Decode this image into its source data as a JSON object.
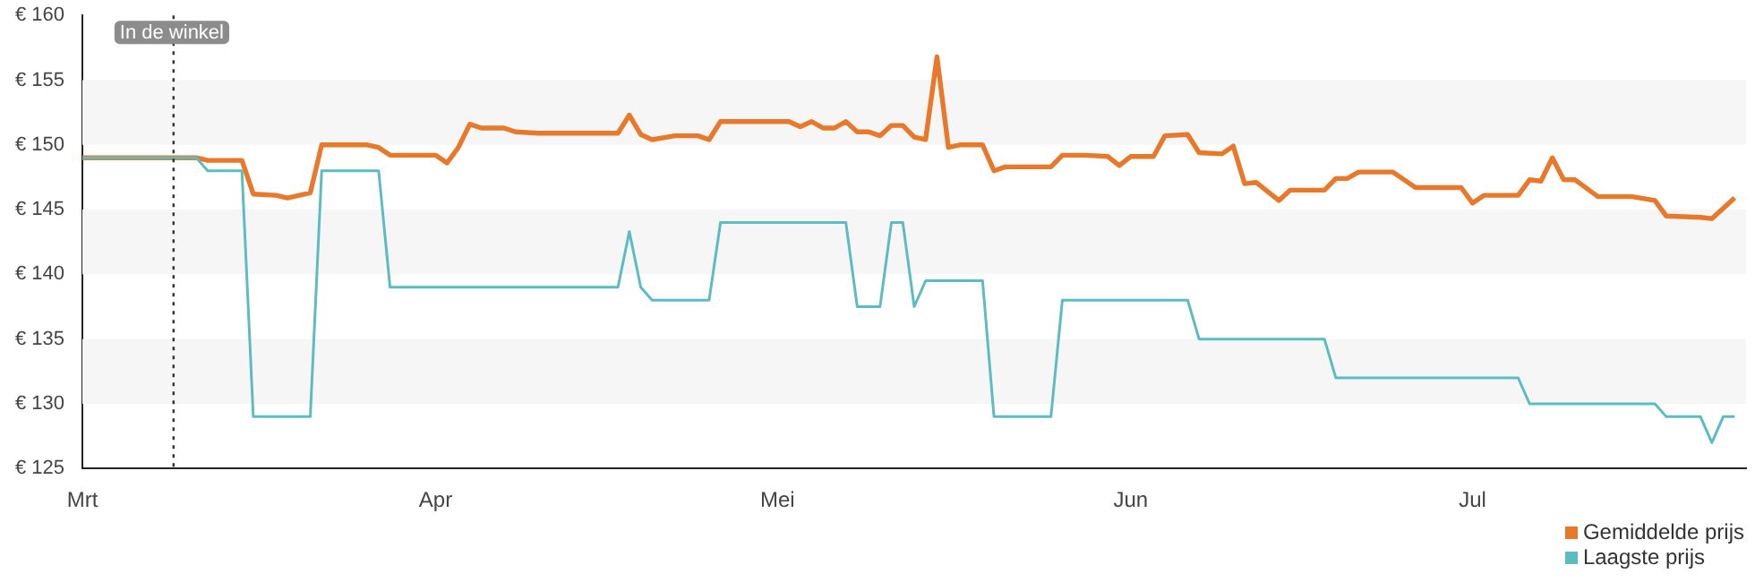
{
  "chart_data": {
    "type": "line",
    "xlim": [
      "--03-01",
      "--07-25"
    ],
    "xticks": [
      {
        "value": "--03-01",
        "label": "Mrt"
      },
      {
        "value": "--04-01",
        "label": "Apr"
      },
      {
        "value": "--05-01",
        "label": "Mei"
      },
      {
        "value": "--06-01",
        "label": "Jun"
      },
      {
        "value": "--07-01",
        "label": "Jul"
      }
    ],
    "ylim": [
      125,
      160
    ],
    "yticks": [
      {
        "value": 125,
        "label": "€ 125"
      },
      {
        "value": 130,
        "label": "€ 130"
      },
      {
        "value": 135,
        "label": "€ 135"
      },
      {
        "value": 140,
        "label": "€ 140"
      },
      {
        "value": 145,
        "label": "€ 145"
      },
      {
        "value": 150,
        "label": "€ 150"
      },
      {
        "value": 155,
        "label": "€ 155"
      },
      {
        "value": 160,
        "label": "€ 160"
      }
    ],
    "legend": "bottom right",
    "marker": "none",
    "line_style": "solid",
    "ref_lines": [
      {
        "axis": "x",
        "value": "--03-09",
        "label": "In de winkel",
        "line_style": "dotted",
        "color": "#333333"
      }
    ],
    "series": [
      {
        "name": "Gemiddelde prijs",
        "color": "#e8782a",
        "x": [
          "--03-01",
          "--03-11",
          "--03-12",
          "--03-15",
          "--03-16",
          "--03-18",
          "--03-19",
          "--03-21",
          "--03-22",
          "--03-26",
          "--03-27",
          "--03-28",
          "--04-01",
          "--04-02",
          "--04-03",
          "--04-04",
          "--04-05",
          "--04-07",
          "--04-08",
          "--04-10",
          "--04-17",
          "--04-18",
          "--04-19",
          "--04-20",
          "--04-22",
          "--04-24",
          "--04-25",
          "--04-26",
          "--05-02",
          "--05-03",
          "--05-04",
          "--05-05",
          "--05-06",
          "--05-07",
          "--05-08",
          "--05-09",
          "--05-10",
          "--05-11",
          "--05-12",
          "--05-13",
          "--05-14",
          "--05-15",
          "--05-16",
          "--05-17",
          "--05-19",
          "--05-20",
          "--05-21",
          "--05-25",
          "--05-26",
          "--05-28",
          "--05-30",
          "--05-31",
          "--06-01",
          "--06-03",
          "--06-04",
          "--06-06",
          "--06-07",
          "--06-09",
          "--06-10",
          "--06-11",
          "--06-12",
          "--06-14",
          "--06-15",
          "--06-18",
          "--06-19",
          "--06-20",
          "--06-21",
          "--06-24",
          "--06-26",
          "--06-30",
          "--07-01",
          "--07-02",
          "--07-05",
          "--07-06",
          "--07-07",
          "--07-08",
          "--07-09",
          "--07-10",
          "--07-12",
          "--07-15",
          "--07-17",
          "--07-18",
          "--07-21",
          "--07-22",
          "--07-24"
        ],
        "values": [
          149,
          149,
          148.8,
          148.8,
          146.2,
          146.1,
          145.9,
          146.3,
          150,
          150,
          149.8,
          149.2,
          149.2,
          148.6,
          149.8,
          151.6,
          151.3,
          151.3,
          151,
          150.9,
          150.9,
          152.3,
          150.8,
          150.4,
          150.7,
          150.7,
          150.4,
          151.8,
          151.8,
          151.4,
          151.8,
          151.3,
          151.3,
          151.8,
          151,
          151,
          150.7,
          151.5,
          151.5,
          150.6,
          150.4,
          156.8,
          149.8,
          150,
          150,
          148,
          148.3,
          148.3,
          149.2,
          149.2,
          149.1,
          148.4,
          149.1,
          149.1,
          150.7,
          150.8,
          149.4,
          149.3,
          149.9,
          147,
          147.1,
          145.7,
          146.5,
          146.5,
          147.4,
          147.4,
          147.9,
          147.9,
          146.7,
          146.7,
          145.5,
          146.1,
          146.1,
          147.3,
          147.2,
          149,
          147.3,
          147.3,
          146,
          146,
          145.7,
          144.5,
          144.4,
          144.3,
          145.9
        ]
      },
      {
        "name": "Laagste prijs",
        "color": "#5bbcc4",
        "x": [
          "--03-01",
          "--03-11",
          "--03-12",
          "--03-15",
          "--03-16",
          "--03-21",
          "--03-22",
          "--03-27",
          "--03-28",
          "--04-17",
          "--04-18",
          "--04-19",
          "--04-20",
          "--04-25",
          "--04-26",
          "--05-07",
          "--05-08",
          "--05-10",
          "--05-11",
          "--05-12",
          "--05-13",
          "--05-14",
          "--05-19",
          "--05-20",
          "--05-25",
          "--05-26",
          "--06-06",
          "--06-07",
          "--06-18",
          "--06-19",
          "--07-05",
          "--07-06",
          "--07-17",
          "--07-18",
          "--07-21",
          "--07-22",
          "--07-23",
          "--07-24"
        ],
        "values": [
          149,
          149,
          148,
          148,
          129,
          129,
          148,
          148,
          139,
          139,
          143.3,
          139,
          138,
          138,
          144,
          144,
          137.5,
          137.5,
          144,
          144,
          137.5,
          139.5,
          139.5,
          129,
          129,
          138,
          138,
          135,
          135,
          132,
          132,
          130,
          130,
          129,
          129,
          127,
          129,
          129
        ]
      }
    ]
  }
}
